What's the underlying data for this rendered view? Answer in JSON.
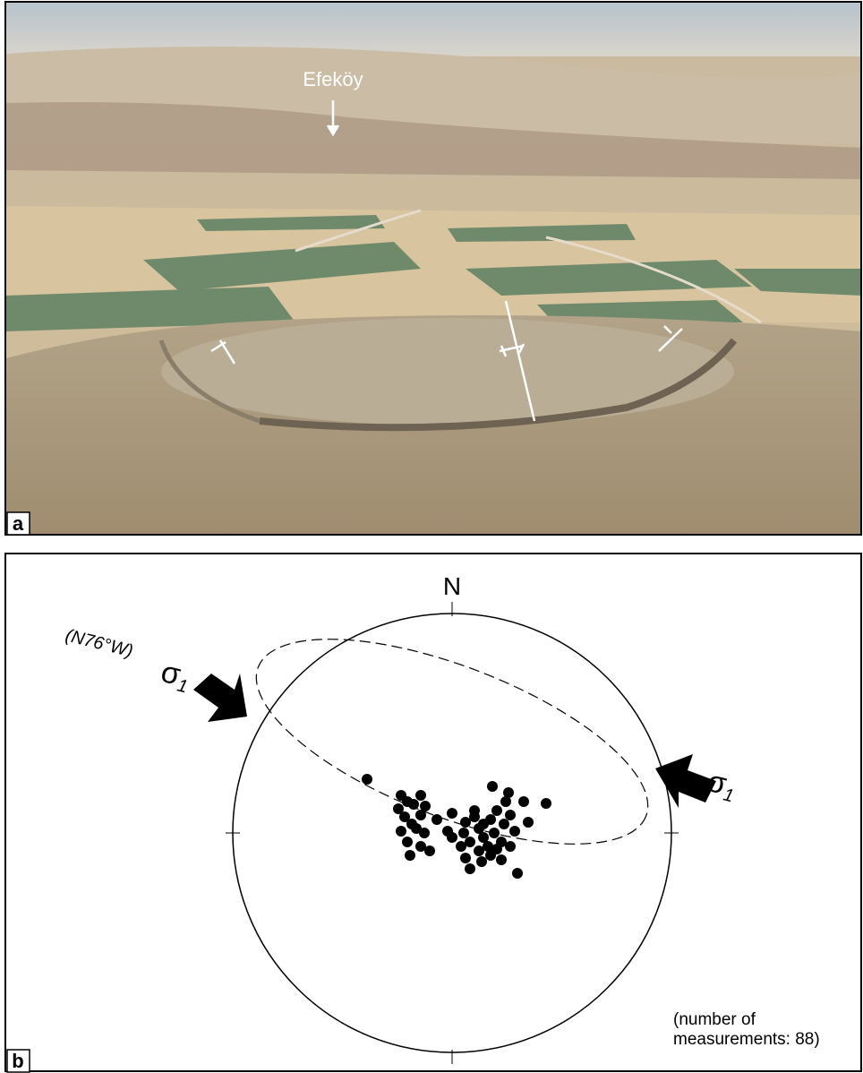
{
  "panel_a": {
    "label": "a",
    "place": "Efeköy"
  },
  "panel_b": {
    "label": "b",
    "north": "N",
    "stress_direction": "(N76°W)",
    "sigma_left": {
      "symbol": "σ",
      "subscript": "1"
    },
    "sigma_right": {
      "symbol": "σ",
      "subscript": "1"
    },
    "note": "(number of measurements: 88)"
  }
}
